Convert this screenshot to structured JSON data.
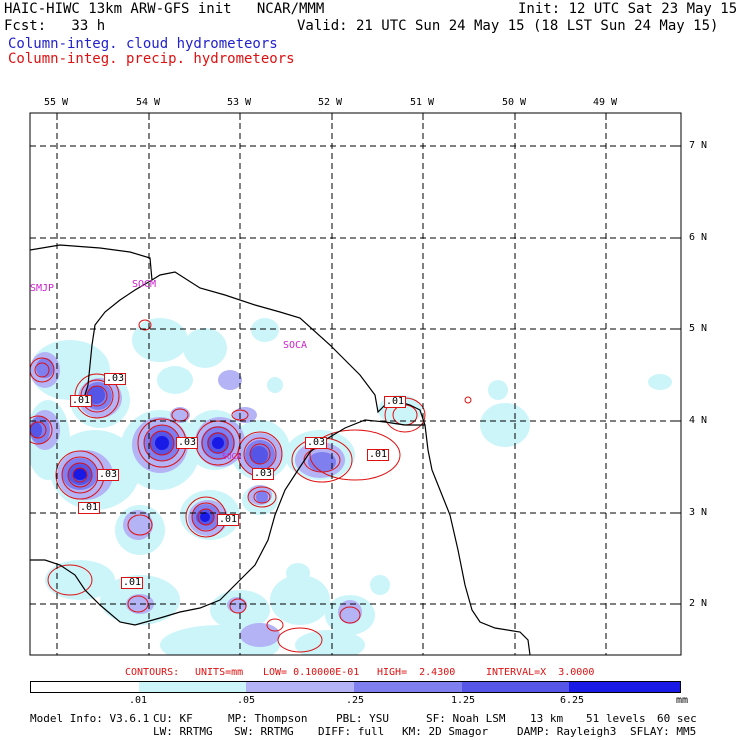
{
  "header": {
    "line1_left": "HAIC-HIWC 13km ARW-GFS init   NCAR/MMM",
    "line1_right": "Init: 12 UTC Sat 23 May 15",
    "line2_left": "Fcst:   33 h",
    "line2_right": "Valid: 21 UTC Sun 24 May 15 (18 LST Sun 24 May 15)",
    "legend_cloud": "Column-integ. cloud hydrometeors",
    "legend_precip": "Column-integ. precip. hydrometeors"
  },
  "map": {
    "lon_labels": [
      "55 W",
      "54 W",
      "53 W",
      "52 W",
      "51 W",
      "50 W",
      "49 W"
    ],
    "lat_labels": [
      "7 N",
      "6 N",
      "5 N",
      "4 N",
      "3 N",
      "2 N"
    ],
    "station_labels": [
      "SMJP",
      "SOCM",
      "SOCA",
      "SOCA"
    ],
    "contour_labels": [
      ".03",
      ".01",
      ".01",
      ".03",
      ".03",
      ".01",
      ".03",
      ".01",
      ".03",
      ".01",
      ".01"
    ]
  },
  "contour_info": {
    "contours": "CONTOURS:",
    "units": "UNITS=mm",
    "low": "LOW= 0.10000E-01",
    "high": "HIGH=  2.4300",
    "interval": "INTERVAL=X  3.0000"
  },
  "colorbar": {
    "colors": [
      "#ffffff",
      "#ccf5fa",
      "#b3b3f5",
      "#7f7ff0",
      "#5555e8",
      "#1a1ae6"
    ],
    "ticks": [
      ".01",
      ".05",
      ".25",
      "1.25",
      "6.25"
    ],
    "unit": "mm"
  },
  "footer": {
    "model_info": "Model Info: V3.6.1",
    "cu": "CU: KF",
    "mp": "MP: Thompson",
    "pbl": "PBL: YSU",
    "sf": "SF: Noah LSM",
    "res": "13 km",
    "levels": "51 levels",
    "dt": "60 sec",
    "lw": "LW: RRTMG",
    "sw": "SW: RRTMG",
    "diff": "DIFF: full",
    "km": "KM: 2D Smagor",
    "damp": "DAMP: Rayleigh3",
    "sflay": "SFLAY: MM5"
  }
}
